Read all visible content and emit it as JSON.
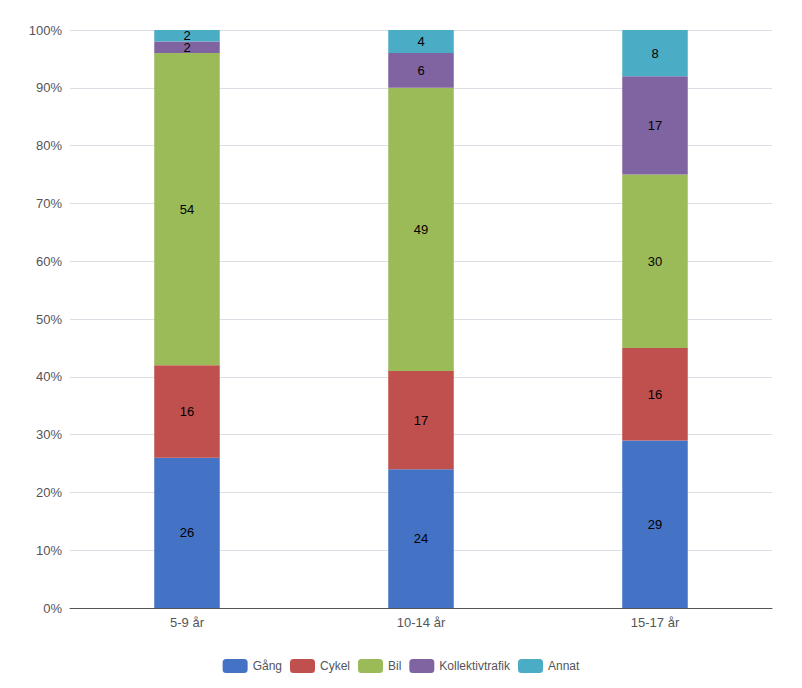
{
  "chart_data": {
    "type": "bar",
    "stacked": true,
    "categories": [
      "5-9 år",
      "10-14 år",
      "15-17 år"
    ],
    "series": [
      {
        "name": "Gång",
        "color": "#4472c4",
        "values": [
          26,
          24,
          29
        ]
      },
      {
        "name": "Cykel",
        "color": "#c0504d",
        "values": [
          16,
          17,
          16
        ]
      },
      {
        "name": "Bil",
        "color": "#9bbb59",
        "values": [
          54,
          49,
          30
        ]
      },
      {
        "name": "Kollektivtrafik",
        "color": "#8064a2",
        "values": [
          2,
          6,
          17
        ]
      },
      {
        "name": "Annat",
        "color": "#4bacc6",
        "values": [
          2,
          4,
          8
        ]
      }
    ],
    "ylim": [
      0,
      100
    ],
    "yticks": [
      {
        "value": 0,
        "label": "0%"
      },
      {
        "value": 10,
        "label": "10%"
      },
      {
        "value": 20,
        "label": "20%"
      },
      {
        "value": 30,
        "label": "30%"
      },
      {
        "value": 40,
        "label": "40%"
      },
      {
        "value": 50,
        "label": "50%"
      },
      {
        "value": 60,
        "label": "60%"
      },
      {
        "value": 70,
        "label": "70%"
      },
      {
        "value": 80,
        "label": "80%"
      },
      {
        "value": 90,
        "label": "90%"
      },
      {
        "value": 100,
        "label": "100%"
      }
    ],
    "grid": true,
    "legend": "bottom",
    "data_labels": true
  }
}
